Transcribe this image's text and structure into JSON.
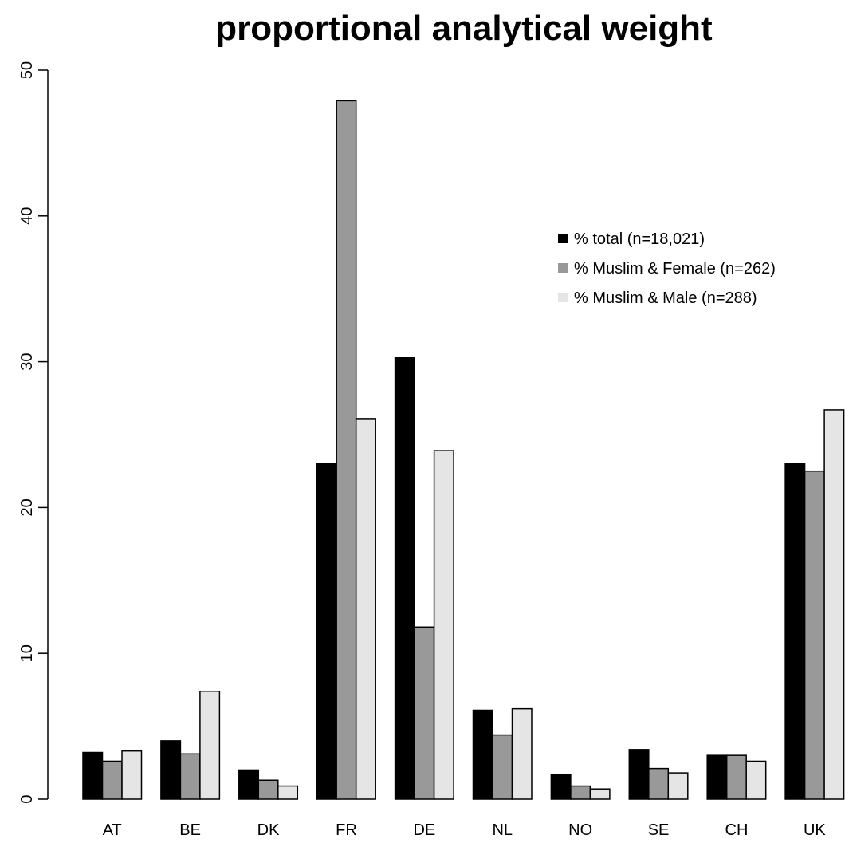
{
  "chart_data": {
    "type": "bar",
    "title": "proportional analytical weight",
    "xlabel": "",
    "ylabel": "",
    "ylim": [
      0,
      50
    ],
    "yticks": [
      "0",
      "10",
      "20",
      "30",
      "40",
      "50"
    ],
    "grid": false,
    "legend_position": "top-right",
    "categories": [
      "AT",
      "BE",
      "DK",
      "FR",
      "DE",
      "NL",
      "NO",
      "SE",
      "CH",
      "UK"
    ],
    "series": [
      {
        "name": "% total (n=18,021)",
        "color": "#000000",
        "values": [
          3.2,
          4.0,
          2.0,
          23.0,
          30.3,
          6.1,
          1.7,
          3.4,
          3.0,
          23.0
        ]
      },
      {
        "name": "% Muslim & Female (n=262)",
        "color": "#999999",
        "values": [
          2.6,
          3.1,
          1.3,
          47.9,
          11.8,
          4.4,
          0.9,
          2.1,
          3.0,
          22.5
        ]
      },
      {
        "name": "% Muslim & Male (n=288)",
        "color": "#e5e5e5",
        "values": [
          3.3,
          7.4,
          0.9,
          26.1,
          23.9,
          6.2,
          0.7,
          1.8,
          2.6,
          26.7
        ]
      }
    ]
  }
}
